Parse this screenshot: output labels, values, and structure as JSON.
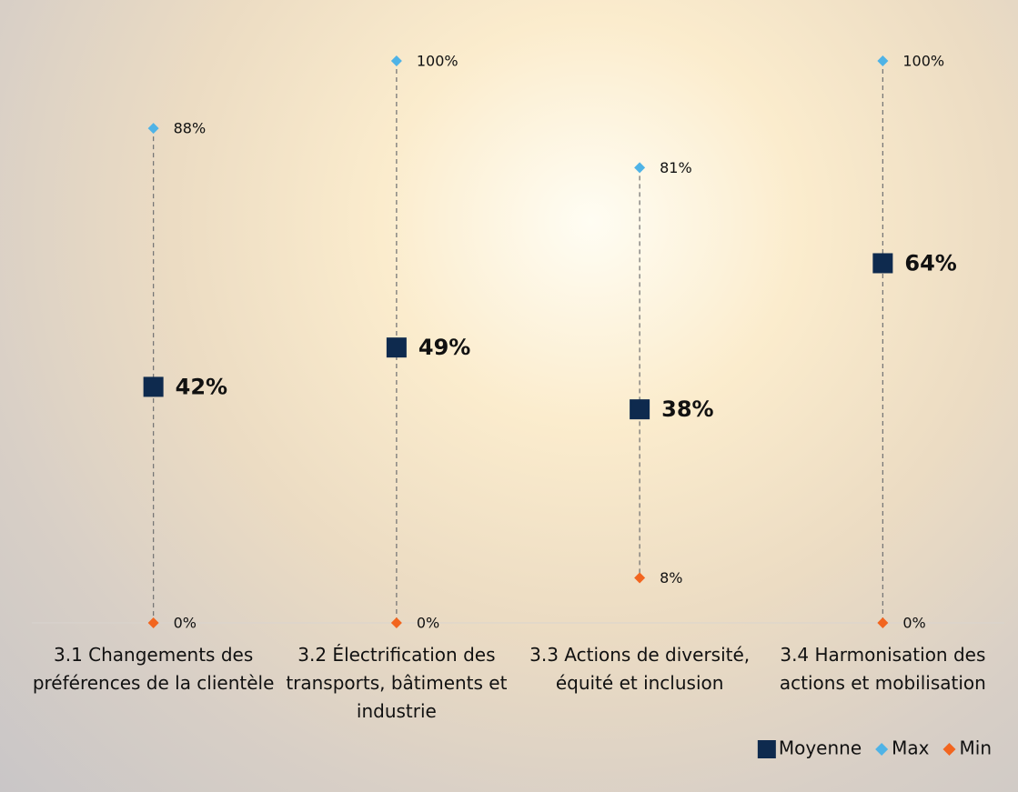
{
  "chart_data": {
    "type": "range",
    "categories": [
      "3.1 Changements des préférences de la clientèle",
      "3.2 Électrification des transports, bâtiments et industrie",
      "3.3 Actions de diversité, équité et inclusion",
      "3.4 Harmonisation des actions et mobilisation"
    ],
    "ylim": [
      0,
      100
    ],
    "series": [
      {
        "name": "Moyenne",
        "color": "#0e2a4e",
        "marker": "square",
        "values": [
          42,
          49,
          38,
          64
        ],
        "value_labels": [
          "42%",
          "49%",
          "38%",
          "64%"
        ]
      },
      {
        "name": "Max",
        "color": "#4fb3e6",
        "marker": "diamond",
        "values": [
          88,
          100,
          81,
          100
        ],
        "value_labels": [
          "88%",
          "100%",
          "81%",
          "100%"
        ]
      },
      {
        "name": "Min",
        "color": "#f2651f",
        "marker": "diamond",
        "values": [
          0,
          0,
          8,
          0
        ],
        "value_labels": [
          "0%",
          "0%",
          "8%",
          "0%"
        ]
      }
    ],
    "legend": "bottom-right"
  }
}
